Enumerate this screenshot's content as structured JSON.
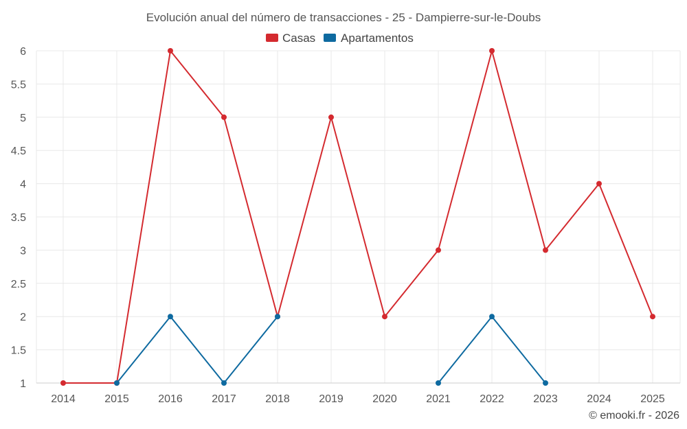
{
  "chart_data": {
    "type": "line",
    "title": "Evolución anual del número de transacciones - 25 - Dampierre-sur-le-Doubs",
    "categories": [
      "2014",
      "2015",
      "2016",
      "2017",
      "2018",
      "2019",
      "2020",
      "2021",
      "2022",
      "2023",
      "2024",
      "2025"
    ],
    "y_ticks": [
      "1",
      "1.5",
      "2",
      "2.5",
      "3",
      "3.5",
      "4",
      "4.5",
      "5",
      "5.5",
      "6"
    ],
    "ylim": [
      1,
      6
    ],
    "grid": true,
    "legend_position": "top-center",
    "series": [
      {
        "name": "Casas",
        "color": "#d42a2f",
        "values": [
          1,
          1,
          6,
          5,
          2,
          5,
          2,
          3,
          6,
          3,
          4,
          2
        ]
      },
      {
        "name": "Apartamentos",
        "color": "#0e6aa0",
        "values": [
          null,
          1,
          2,
          1,
          2,
          null,
          null,
          1,
          2,
          1,
          null,
          null
        ]
      }
    ],
    "credit": "© emooki.fr - 2026"
  }
}
